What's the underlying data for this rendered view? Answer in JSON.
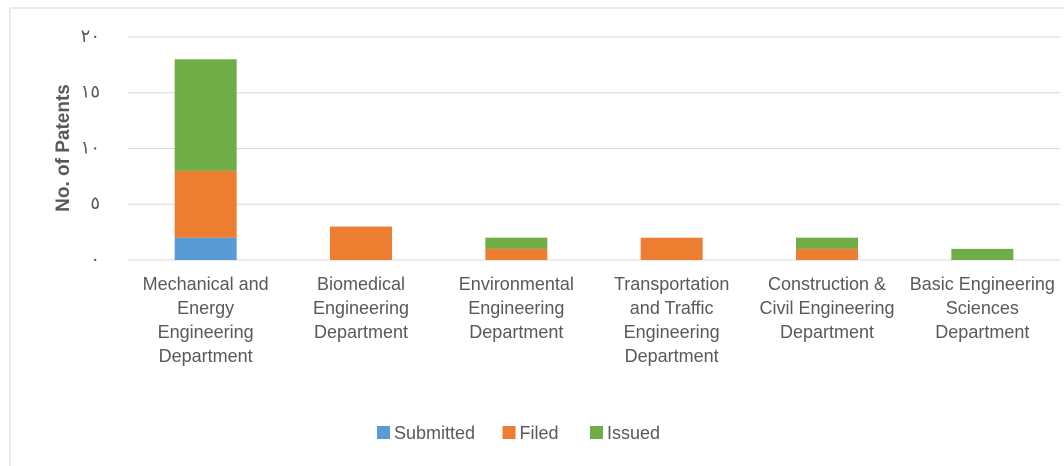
{
  "chart_data": {
    "type": "stacked_bar",
    "y_label": "No. of Patents",
    "categories": [
      "Mechanical and Energy Engineering Department",
      "Biomedical Engineering Department",
      "Environmental Engineering Department",
      "Transportation and Traffic Engineering Department",
      "Construction & Civil Engineering Department",
      "Basic Engineering Sciences Department"
    ],
    "series": [
      {
        "name": "Submitted",
        "color": "#5b9bd5",
        "values": [
          2,
          0,
          0,
          0,
          0,
          0
        ]
      },
      {
        "name": "Filed",
        "color": "#ed7d31",
        "values": [
          6,
          3,
          1,
          2,
          1,
          0
        ]
      },
      {
        "name": "Issued",
        "color": "#70ad47",
        "values": [
          10,
          0,
          1,
          0,
          1,
          1
        ]
      }
    ],
    "ylim": [
      0,
      20
    ],
    "yticks": [
      {
        "value": 0,
        "label": "٠"
      },
      {
        "value": 5,
        "label": "٥"
      },
      {
        "value": 10,
        "label": "١٠"
      },
      {
        "value": 15,
        "label": "١٥"
      },
      {
        "value": 20,
        "label": "٢٠"
      }
    ],
    "grid": true,
    "legend": "bottom"
  }
}
